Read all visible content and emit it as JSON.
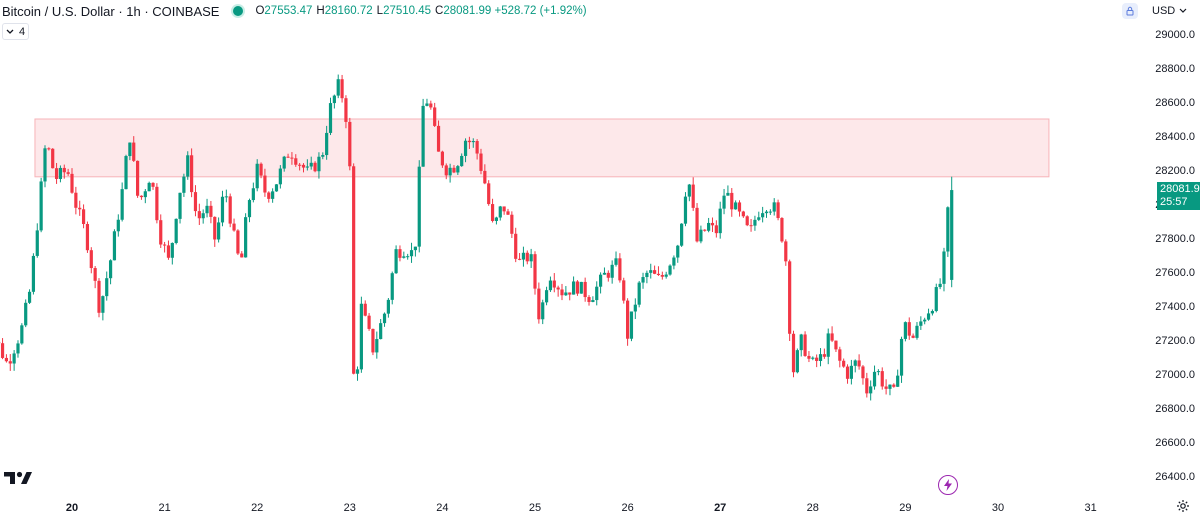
{
  "header": {
    "symbol": "Bitcoin / U.S. Dollar · 1h · COINBASE",
    "o_key": "O",
    "o_val": "27553.47",
    "h_key": "H",
    "h_val": "28160.72",
    "l_key": "L",
    "l_val": "27510.45",
    "c_key": "C",
    "c_val": "28081.99 +528.72 (+1.92%)"
  },
  "indicator_toggle": {
    "count": "4"
  },
  "currency": "USD",
  "last_price": {
    "price": "28081.9",
    "countdown": "25:57"
  },
  "icons": {
    "status": "live-status-dot",
    "chevron": "chevron-down-icon",
    "lock": "lock-icon",
    "logo": "tradingview-logo",
    "flash": "lightning-icon",
    "settings": "gear-icon"
  },
  "colors": {
    "up": "#089981",
    "down": "#f23645",
    "zone_fill": "#fde8ea",
    "zone_border": "#f7b3b8",
    "grid_text": "#131722"
  },
  "chart_data": {
    "type": "candlestick",
    "y_axis_ticks": [
      "29000.0",
      "28800.0",
      "28600.0",
      "28400.0",
      "28200.0",
      "28000.0",
      "27800.0",
      "27600.0",
      "27400.0",
      "27200.0",
      "27000.0",
      "26800.0",
      "26600.0",
      "26400.0"
    ],
    "x_axis_ticks": [
      {
        "label": "20",
        "bold": true
      },
      {
        "label": "21",
        "bold": false
      },
      {
        "label": "22",
        "bold": false
      },
      {
        "label": "23",
        "bold": false
      },
      {
        "label": "24",
        "bold": false
      },
      {
        "label": "25",
        "bold": false
      },
      {
        "label": "26",
        "bold": false
      },
      {
        "label": "27",
        "bold": true
      },
      {
        "label": "28",
        "bold": false
      },
      {
        "label": "29",
        "bold": false
      },
      {
        "label": "30",
        "bold": false
      },
      {
        "label": "31",
        "bold": false
      }
    ],
    "resistance_zone": {
      "low": 28160,
      "high": 28500,
      "from_day": 19.6,
      "to_day": 30.55
    },
    "path": [
      [
        19.0,
        27160
      ],
      [
        19.18,
        27200
      ],
      [
        19.3,
        27060
      ],
      [
        19.45,
        27250
      ],
      [
        19.55,
        27500
      ],
      [
        19.65,
        28010
      ],
      [
        19.72,
        28380
      ],
      [
        19.82,
        28150
      ],
      [
        19.95,
        28200
      ],
      [
        20.05,
        27980
      ],
      [
        20.15,
        27820
      ],
      [
        20.3,
        27380
      ],
      [
        20.42,
        27680
      ],
      [
        20.55,
        28100
      ],
      [
        20.62,
        28420
      ],
      [
        20.72,
        28000
      ],
      [
        20.85,
        28180
      ],
      [
        20.95,
        27820
      ],
      [
        21.05,
        27650
      ],
      [
        21.15,
        28050
      ],
      [
        21.25,
        28250
      ],
      [
        21.35,
        27900
      ],
      [
        21.45,
        27980
      ],
      [
        21.55,
        27780
      ],
      [
        21.65,
        28100
      ],
      [
        21.75,
        27800
      ],
      [
        21.82,
        27620
      ],
      [
        21.9,
        28000
      ],
      [
        22.0,
        28200
      ],
      [
        22.1,
        28050
      ],
      [
        22.2,
        28120
      ],
      [
        22.35,
        28320
      ],
      [
        22.45,
        28250
      ],
      [
        22.55,
        28180
      ],
      [
        22.7,
        28280
      ],
      [
        22.78,
        28550
      ],
      [
        22.88,
        28700
      ],
      [
        22.95,
        28580
      ],
      [
        23.0,
        28200
      ],
      [
        23.05,
        26750
      ],
      [
        23.12,
        27400
      ],
      [
        23.25,
        27150
      ],
      [
        23.4,
        27400
      ],
      [
        23.5,
        27720
      ],
      [
        23.6,
        27740
      ],
      [
        23.7,
        27700
      ],
      [
        23.8,
        28650
      ],
      [
        23.88,
        28550
      ],
      [
        23.95,
        28300
      ],
      [
        24.05,
        28200
      ],
      [
        24.15,
        28230
      ],
      [
        24.25,
        28380
      ],
      [
        24.35,
        28350
      ],
      [
        24.45,
        28150
      ],
      [
        24.55,
        27850
      ],
      [
        24.65,
        28000
      ],
      [
        24.72,
        27900
      ],
      [
        24.82,
        27650
      ],
      [
        24.95,
        27700
      ],
      [
        25.05,
        27320
      ],
      [
        25.15,
        27600
      ],
      [
        25.3,
        27480
      ],
      [
        25.45,
        27520
      ],
      [
        25.6,
        27450
      ],
      [
        25.75,
        27580
      ],
      [
        25.9,
        27650
      ],
      [
        26.0,
        27230
      ],
      [
        26.12,
        27510
      ],
      [
        26.22,
        27600
      ],
      [
        26.35,
        27550
      ],
      [
        26.45,
        27650
      ],
      [
        26.55,
        27780
      ],
      [
        26.65,
        28180
      ],
      [
        26.75,
        27780
      ],
      [
        26.88,
        27880
      ],
      [
        26.95,
        27820
      ],
      [
        27.05,
        28080
      ],
      [
        27.15,
        27980
      ],
      [
        27.22,
        27920
      ],
      [
        27.32,
        27820
      ],
      [
        27.4,
        27950
      ],
      [
        27.5,
        28000
      ],
      [
        27.58,
        27980
      ],
      [
        27.7,
        27750
      ],
      [
        27.78,
        27000
      ],
      [
        27.88,
        27200
      ],
      [
        27.98,
        27050
      ],
      [
        28.1,
        27100
      ],
      [
        28.18,
        27220
      ],
      [
        28.28,
        27080
      ],
      [
        28.38,
        27000
      ],
      [
        28.48,
        27080
      ],
      [
        28.58,
        26900
      ],
      [
        28.68,
        27040
      ],
      [
        28.78,
        26920
      ],
      [
        28.88,
        26880
      ],
      [
        28.98,
        27300
      ],
      [
        29.08,
        27210
      ],
      [
        29.18,
        27320
      ],
      [
        29.3,
        27420
      ],
      [
        29.4,
        27570
      ],
      [
        29.48,
        28081.99
      ]
    ]
  }
}
